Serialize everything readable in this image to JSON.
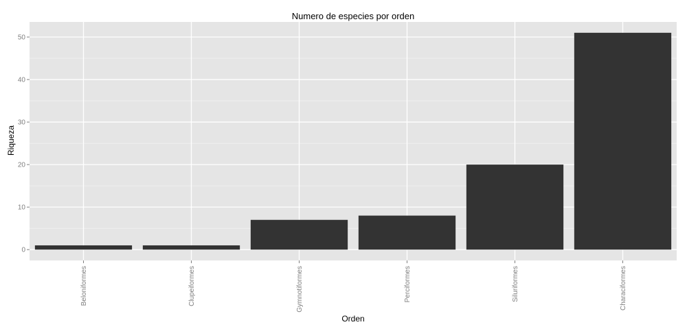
{
  "chart_data": {
    "type": "bar",
    "title": "Numero de especies por orden",
    "xlabel": "Orden",
    "ylabel": "Riqueza",
    "categories": [
      "Beloniformes",
      "Clupeiformes",
      "Gymnotiformes",
      "Perciformes",
      "Siluriformes",
      "Characiformes"
    ],
    "values": [
      1,
      1,
      7,
      8,
      20,
      51
    ],
    "ylim": [
      -2.55,
      53.55
    ],
    "yticks": [
      0,
      10,
      20,
      30,
      40,
      50
    ],
    "grid": true,
    "colors": {
      "panel": "#e5e5e5",
      "grid_major": "#ffffff",
      "grid_minor": "#f2f2f2",
      "bar": "#333333",
      "tick": "#7f7f7f"
    }
  }
}
